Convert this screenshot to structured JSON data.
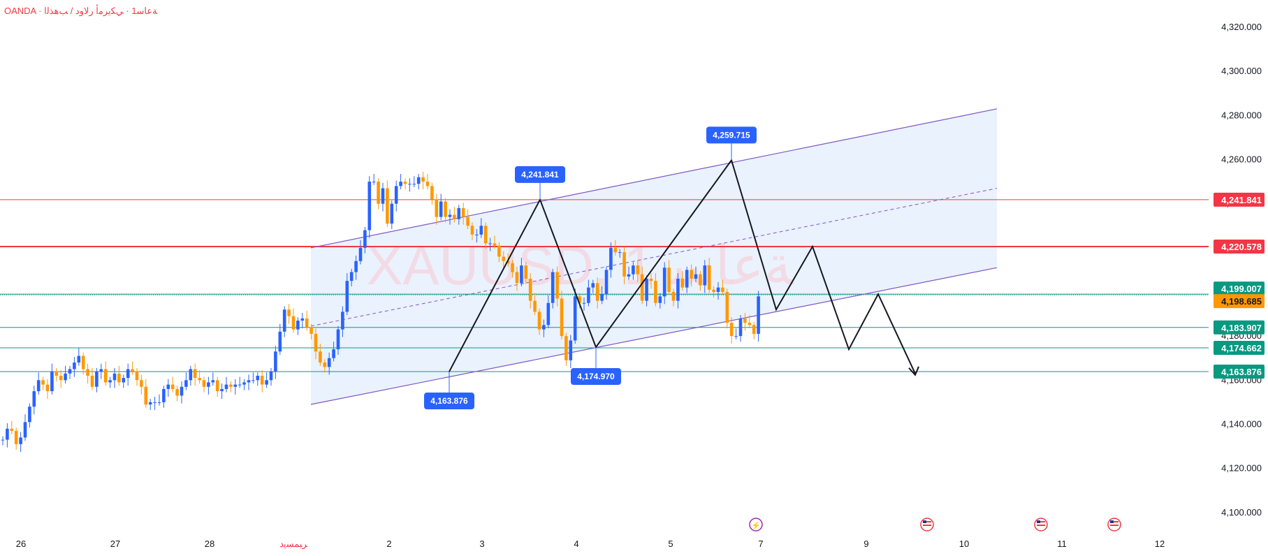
{
  "header": {
    "symbol_line": "OANDA · ﺔﻋﺎﺳ1 · ﻲﻜﻳﺮﻣﺃ ﺭﻻﻭﺩ / ﺐﻫﺬﻟﺍ"
  },
  "watermark": {
    "text": "XAUUSD, ﺔﻋﺎﺳ 1"
  },
  "colors": {
    "up": "#2962ff",
    "down": "#ff9800",
    "channel_line": "#7e57c2",
    "channel_fill": "#e3eefc",
    "resistance": "#f23645",
    "support": "#089981",
    "current": "#ff9800",
    "label_blue": "#2962ff"
  },
  "chart_data": {
    "type": "candlestick",
    "y_axis": {
      "range": [
        4090,
        4330
      ],
      "ticks": [
        "4,320.000",
        "4,300.000",
        "4,280.000",
        "4,260.000",
        "4,240.000",
        "4,220.000",
        "4,200.000",
        "4,180.000",
        "4,160.000",
        "4,140.000",
        "4,120.000",
        "4,100.000"
      ],
      "tick_values": [
        4320,
        4300,
        4280,
        4260,
        4240,
        4220,
        4200,
        4180,
        4160,
        4140,
        4120,
        4100
      ]
    },
    "x_axis": {
      "labels": [
        "26",
        "27",
        "28",
        "ﺮﺒﻤﺴﻳﺩ",
        "2",
        "3",
        "4",
        "5",
        "7",
        "9",
        "10",
        "11",
        "12"
      ],
      "label_index": [
        0,
        1,
        2,
        3,
        4,
        5,
        6,
        7,
        8,
        9,
        10,
        11,
        12
      ],
      "highlight_label": "ﺮﺒﻤﺴﻳﺩ"
    },
    "price_lines": [
      {
        "value": 4241.841,
        "label": "4,241.841",
        "kind": "resistance"
      },
      {
        "value": 4220.578,
        "label": "4,220.578",
        "kind": "resistance"
      },
      {
        "value": 4199.007,
        "label": "4,199.007",
        "kind": "support"
      },
      {
        "value": 4198.685,
        "label": "4,198.685",
        "kind": "current"
      },
      {
        "value": 4183.907,
        "label": "4,183.907",
        "kind": "support"
      },
      {
        "value": 4174.662,
        "label": "4,174.662",
        "kind": "support"
      },
      {
        "value": 4163.876,
        "label": "4,163.876",
        "kind": "support"
      }
    ],
    "pivot_labels": [
      {
        "value": 4241.841,
        "label": "4,241.841",
        "pos": "above"
      },
      {
        "value": 4259.715,
        "label": "4,259.715",
        "pos": "above"
      },
      {
        "value": 4163.876,
        "label": "4,163.876",
        "pos": "below"
      },
      {
        "value": 4174.97,
        "label": "4,174.970",
        "pos": "below"
      }
    ],
    "channel": {
      "upper": [
        {
          "t": 0,
          "v": 4220
        },
        {
          "t": 1,
          "v": 4283
        }
      ],
      "lower": [
        {
          "t": 0,
          "v": 4149
        },
        {
          "t": 1,
          "v": 4211
        }
      ],
      "mid": [
        {
          "t": 0,
          "v": 4184.5
        },
        {
          "t": 1,
          "v": 4247
        }
      ]
    },
    "pattern_path": [
      4163.876,
      4241.841,
      4174.97,
      4259.715,
      4192,
      4220.578,
      4174,
      4199,
      4163
    ],
    "candles": {
      "count": 170,
      "open": [
        4133,
        4133,
        4138,
        4137,
        4131,
        4134,
        4141,
        4148,
        4155,
        4160,
        4158,
        4155,
        4164,
        4162,
        4160,
        4163,
        4165,
        4168,
        4171,
        4165,
        4162,
        4157,
        4164,
        4165,
        4159,
        4160,
        4163,
        4159,
        4161,
        4165,
        4164,
        4160,
        4157,
        4149,
        4150,
        4150,
        4150,
        4156,
        4158,
        4156,
        4153,
        4157,
        4160,
        4165,
        4161,
        4160,
        4157,
        4159,
        4160,
        4155,
        4156,
        4158,
        4157,
        4158,
        4158,
        4159,
        4160,
        4160,
        4162,
        4158,
        4160,
        4164,
        4173,
        4182,
        4192,
        4189,
        4183,
        4187,
        4188,
        4184,
        4181,
        4173,
        4168,
        4166,
        4170,
        4174,
        4183,
        4191,
        4205,
        4209,
        4214,
        4220,
        4228,
        4250,
        4250,
        4240,
        4247,
        4231,
        4240,
        4248,
        4250,
        4249,
        4249,
        4249,
        4252,
        4250,
        4248,
        4242,
        4234,
        4241,
        4234,
        4235,
        4233,
        4238,
        4234,
        4230,
        4226,
        4226,
        4230,
        4222,
        4222,
        4221,
        4216,
        4214,
        4213,
        4209,
        4204,
        4212,
        4206,
        4196,
        4191,
        4183,
        4185,
        4195,
        4209,
        4197,
        4180,
        4169,
        4178,
        4198,
        4195,
        4195,
        4202,
        4204,
        4196,
        4199,
        4210,
        4220,
        4218,
        4218,
        4207,
        4208,
        4212,
        4208,
        4196,
        4206,
        4205,
        4195,
        4198,
        4211,
        4200,
        4196,
        4206,
        4202,
        4210,
        4206,
        4208,
        4203,
        4212,
        4201,
        4200,
        4202,
        4200,
        4186,
        4180,
        4180,
        4188,
        4186,
        4185,
        4181
      ],
      "close": [
        4133,
        4138,
        4137,
        4131,
        4134,
        4141,
        4148,
        4155,
        4160,
        4158,
        4155,
        4164,
        4162,
        4160,
        4163,
        4165,
        4168,
        4171,
        4165,
        4162,
        4157,
        4164,
        4165,
        4159,
        4160,
        4163,
        4159,
        4161,
        4165,
        4164,
        4160,
        4157,
        4149,
        4150,
        4150,
        4150,
        4156,
        4158,
        4156,
        4153,
        4157,
        4160,
        4165,
        4161,
        4160,
        4157,
        4159,
        4160,
        4155,
        4156,
        4158,
        4157,
        4158,
        4158,
        4159,
        4160,
        4160,
        4162,
        4158,
        4160,
        4164,
        4173,
        4182,
        4192,
        4189,
        4183,
        4187,
        4188,
        4184,
        4181,
        4173,
        4168,
        4166,
        4170,
        4174,
        4183,
        4191,
        4205,
        4209,
        4214,
        4220,
        4228,
        4250,
        4250,
        4240,
        4247,
        4231,
        4240,
        4248,
        4250,
        4249,
        4249,
        4249,
        4252,
        4250,
        4248,
        4242,
        4234,
        4241,
        4234,
        4235,
        4233,
        4238,
        4234,
        4230,
        4226,
        4226,
        4230,
        4222,
        4222,
        4221,
        4216,
        4214,
        4213,
        4209,
        4204,
        4212,
        4206,
        4196,
        4191,
        4183,
        4185,
        4195,
        4209,
        4197,
        4180,
        4169,
        4178,
        4198,
        4195,
        4195,
        4202,
        4204,
        4196,
        4199,
        4210,
        4220,
        4218,
        4218,
        4207,
        4208,
        4212,
        4208,
        4196,
        4206,
        4205,
        4195,
        4198,
        4211,
        4200,
        4196,
        4206,
        4202,
        4210,
        4206,
        4208,
        4203,
        4212,
        4201,
        4200,
        4202,
        4200,
        4186,
        4180,
        4180,
        4188,
        4186,
        4185,
        4181,
        4198
      ]
    }
  }
}
